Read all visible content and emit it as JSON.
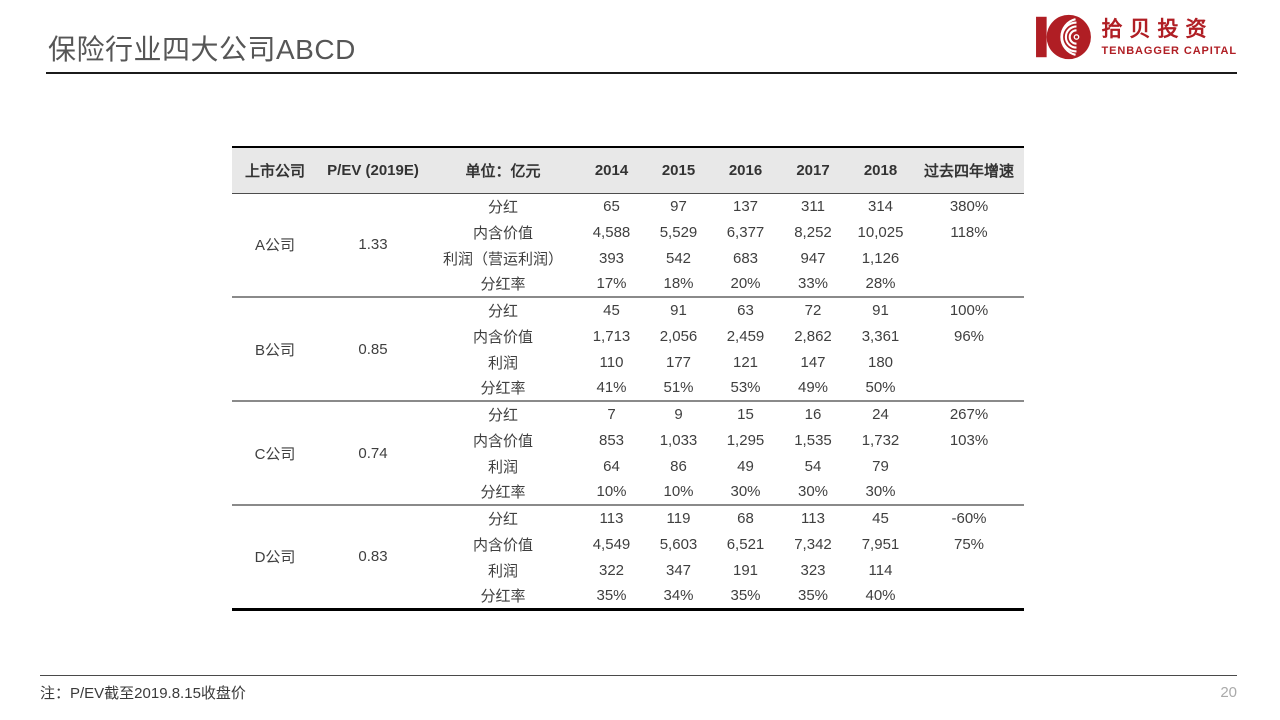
{
  "slide": {
    "title": "保险行业四大公司ABCD",
    "footnote": "注：P/EV截至2019.8.15收盘价",
    "page_number": "20"
  },
  "logo": {
    "name_cn": "拾贝投资",
    "name_en": "TENBAGGER CAPITAL",
    "brand_color": "#b01e24"
  },
  "table": {
    "headers": [
      "上市公司",
      "P/EV (2019E)",
      "单位：亿元",
      "2014",
      "2015",
      "2016",
      "2017",
      "2018",
      "过去四年增速"
    ],
    "companies": [
      {
        "name": "A公司",
        "pev": "1.33",
        "rows": [
          {
            "metric": "分红",
            "values": [
              "65",
              "97",
              "137",
              "311",
              "314"
            ],
            "growth": "380%"
          },
          {
            "metric": "内含价值",
            "values": [
              "4,588",
              "5,529",
              "6,377",
              "8,252",
              "10,025"
            ],
            "growth": "118%"
          },
          {
            "metric": "利润（营运利润）",
            "values": [
              "393",
              "542",
              "683",
              "947",
              "1,126"
            ],
            "growth": ""
          },
          {
            "metric": "分红率",
            "values": [
              "17%",
              "18%",
              "20%",
              "33%",
              "28%"
            ],
            "growth": ""
          }
        ]
      },
      {
        "name": "B公司",
        "pev": "0.85",
        "rows": [
          {
            "metric": "分红",
            "values": [
              "45",
              "91",
              "63",
              "72",
              "91"
            ],
            "growth": "100%"
          },
          {
            "metric": "内含价值",
            "values": [
              "1,713",
              "2,056",
              "2,459",
              "2,862",
              "3,361"
            ],
            "growth": "96%"
          },
          {
            "metric": "利润",
            "values": [
              "110",
              "177",
              "121",
              "147",
              "180"
            ],
            "growth": ""
          },
          {
            "metric": "分红率",
            "values": [
              "41%",
              "51%",
              "53%",
              "49%",
              "50%"
            ],
            "growth": ""
          }
        ]
      },
      {
        "name": "C公司",
        "pev": "0.74",
        "rows": [
          {
            "metric": "分红",
            "values": [
              "7",
              "9",
              "15",
              "16",
              "24"
            ],
            "growth": "267%"
          },
          {
            "metric": "内含价值",
            "values": [
              "853",
              "1,033",
              "1,295",
              "1,535",
              "1,732"
            ],
            "growth": "103%"
          },
          {
            "metric": "利润",
            "values": [
              "64",
              "86",
              "49",
              "54",
              "79"
            ],
            "growth": ""
          },
          {
            "metric": "分红率",
            "values": [
              "10%",
              "10%",
              "30%",
              "30%",
              "30%"
            ],
            "growth": ""
          }
        ]
      },
      {
        "name": "D公司",
        "pev": "0.83",
        "rows": [
          {
            "metric": "分红",
            "values": [
              "113",
              "119",
              "68",
              "113",
              "45"
            ],
            "growth": "-60%"
          },
          {
            "metric": "内含价值",
            "values": [
              "4,549",
              "5,603",
              "6,521",
              "7,342",
              "7,951"
            ],
            "growth": "75%"
          },
          {
            "metric": "利润",
            "values": [
              "322",
              "347",
              "191",
              "323",
              "114"
            ],
            "growth": ""
          },
          {
            "metric": "分红率",
            "values": [
              "35%",
              "34%",
              "35%",
              "35%",
              "40%"
            ],
            "growth": ""
          }
        ]
      }
    ]
  }
}
